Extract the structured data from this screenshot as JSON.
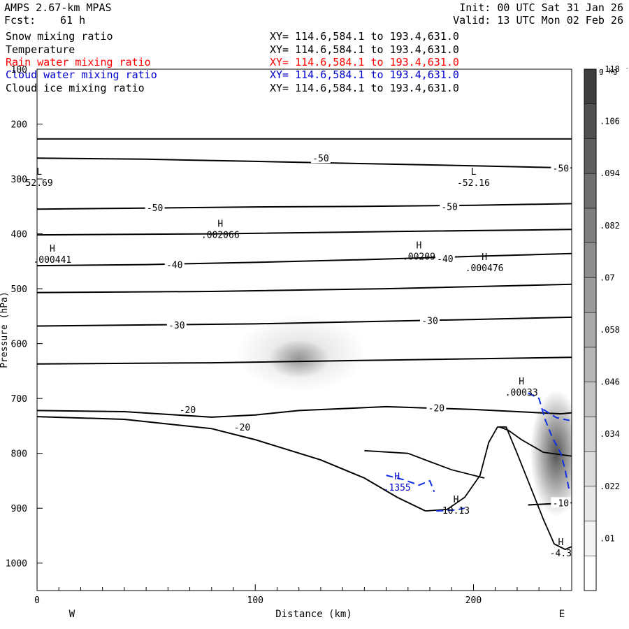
{
  "header": {
    "model": "AMPS 2.67-km MPAS",
    "fcst_label": "Fcst:",
    "fcst_value": "61 h",
    "init": "Init: 00 UTC Sat 31 Jan 26",
    "valid": "Valid: 13 UTC Mon 02 Feb 26"
  },
  "fields": [
    {
      "name": "Snow mixing ratio",
      "xy": "XY= 114.6,584.1 to 193.4,631.0",
      "color": "#000000"
    },
    {
      "name": "Temperature",
      "xy": "XY= 114.6,584.1 to 193.4,631.0",
      "color": "#000000"
    },
    {
      "name": "Rain water mixing ratio",
      "xy": "XY= 114.6,584.1 to 193.4,631.0",
      "color": "#ff0000"
    },
    {
      "name": "Cloud water mixing ratio",
      "xy": "XY= 114.6,584.1 to 193.4,631.0",
      "color": "#0000cc"
    },
    {
      "name": "Cloud ice mixing ratio",
      "xy": "XY= 114.6,584.1 to 193.4,631.0",
      "color": "#000000"
    }
  ],
  "chart_data": {
    "type": "heatmap",
    "xlabel": "Distance (km)",
    "ylabel": "Pressure (hPa)",
    "xlim": [
      0,
      245
    ],
    "ylim": [
      100,
      1050
    ],
    "y_scale": "linear",
    "x_ticks": [
      0,
      100,
      200
    ],
    "y_ticks": [
      100,
      200,
      300,
      400,
      500,
      600,
      700,
      800,
      900,
      1000
    ],
    "x_end_labels": {
      "left": "W",
      "right": "E"
    },
    "colorbar": {
      "units": "g kg",
      "units_exp": "-1",
      "labels": [
        ".01",
        ".022",
        ".034",
        ".046",
        ".058",
        ".07",
        ".082",
        ".094",
        ".106",
        ".118"
      ],
      "shades": [
        "#ffffff",
        "#f4f4f4",
        "#e8e8e8",
        "#dcdcdc",
        "#d0d0d0",
        "#c3c3c3",
        "#b6b6b6",
        "#a9a9a9",
        "#9b9b9b",
        "#8d8d8d",
        "#7f7f7f",
        "#6f6f6f",
        "#5f5f5f",
        "#4f4f4f",
        "#3f3f3f"
      ]
    },
    "temperature_isotherms": [
      {
        "label": "-50",
        "points": [
          [
            0,
            262
          ],
          [
            50,
            264
          ],
          [
            100,
            268
          ],
          [
            150,
            272
          ],
          [
            200,
            276
          ],
          [
            245,
            280
          ]
        ]
      },
      {
        "label": "-50",
        "points": [
          [
            0,
            355
          ],
          [
            50,
            353
          ],
          [
            100,
            351
          ],
          [
            150,
            350
          ],
          [
            200,
            348
          ],
          [
            245,
            345
          ]
        ]
      },
      {
        "label": "-40",
        "points": [
          [
            0,
            458
          ],
          [
            50,
            456
          ],
          [
            100,
            452
          ],
          [
            150,
            447
          ],
          [
            200,
            441
          ],
          [
            245,
            436
          ]
        ]
      },
      {
        "label": "-30",
        "points": [
          [
            0,
            568
          ],
          [
            50,
            566
          ],
          [
            100,
            564
          ],
          [
            150,
            560
          ],
          [
            200,
            556
          ],
          [
            245,
            552
          ]
        ]
      },
      {
        "label": "-20",
        "points": [
          [
            0,
            722
          ],
          [
            40,
            724
          ],
          [
            80,
            734
          ],
          [
            100,
            730
          ],
          [
            120,
            722
          ],
          [
            160,
            715
          ],
          [
            200,
            720
          ],
          [
            240,
            728
          ],
          [
            245,
            726
          ]
        ]
      },
      {
        "label": "-20",
        "points": [
          [
            0,
            733
          ],
          [
            40,
            738
          ],
          [
            80,
            755
          ],
          [
            100,
            775
          ],
          [
            130,
            812
          ],
          [
            150,
            845
          ],
          [
            165,
            880
          ],
          [
            178,
            905
          ]
        ]
      },
      {
        "label": "-10",
        "points": [
          [
            225,
            894
          ],
          [
            245,
            890
          ]
        ]
      }
    ],
    "upper_lines": [
      {
        "points": [
          [
            0,
            227
          ],
          [
            245,
            227
          ]
        ]
      },
      {
        "points": [
          [
            0,
            402
          ],
          [
            80,
            400
          ],
          [
            160,
            396
          ],
          [
            245,
            392
          ]
        ]
      },
      {
        "points": [
          [
            0,
            507
          ],
          [
            80,
            505
          ],
          [
            160,
            500
          ],
          [
            245,
            492
          ]
        ]
      },
      {
        "points": [
          [
            0,
            637
          ],
          [
            80,
            635
          ],
          [
            160,
            630
          ],
          [
            245,
            625
          ]
        ]
      }
    ],
    "terrain_contours": [
      {
        "points": [
          [
            150,
            795
          ],
          [
            170,
            800
          ],
          [
            180,
            815
          ],
          [
            190,
            830
          ],
          [
            205,
            845
          ]
        ]
      },
      {
        "points": [
          [
            178,
            905
          ],
          [
            188,
            902
          ],
          [
            196,
            880
          ],
          [
            203,
            840
          ],
          [
            207,
            780
          ],
          [
            211,
            752
          ],
          [
            215,
            752
          ],
          [
            220,
            800
          ],
          [
            226,
            860
          ],
          [
            232,
            920
          ],
          [
            237,
            965
          ],
          [
            242,
            975
          ],
          [
            245,
            970
          ]
        ]
      },
      {
        "points": [
          [
            212,
            752
          ],
          [
            216,
            758
          ],
          [
            222,
            775
          ],
          [
            232,
            798
          ],
          [
            245,
            805
          ]
        ]
      }
    ],
    "extrema": [
      {
        "type": "L",
        "value": "52.69",
        "x": 1,
        "p": 300
      },
      {
        "type": "L",
        "value": "-52.16",
        "x": 200,
        "p": 300
      },
      {
        "type": "H",
        "value": ".002066",
        "x": 84,
        "p": 395
      },
      {
        "type": "H",
        "value": ".000441",
        "x": 7,
        "p": 440
      },
      {
        "type": "H",
        "value": ".00209",
        "x": 175,
        "p": 434
      },
      {
        "type": "H",
        "value": ".000476",
        "x": 205,
        "p": 455
      },
      {
        "type": "H",
        "value": ".00033",
        "x": 222,
        "p": 682
      },
      {
        "type": "H",
        "value": ".1355",
        "x": 165,
        "p": 855
      },
      {
        "type": "H",
        "value": "10.13",
        "x": 192,
        "p": 897
      },
      {
        "type": "H",
        "value": "-4.3",
        "x": 240,
        "p": 975
      }
    ],
    "cloud_water_dashes": [
      {
        "points": [
          [
            160,
            840
          ],
          [
            168,
            848
          ],
          [
            175,
            858
          ],
          [
            180,
            850
          ],
          [
            182,
            870
          ]
        ]
      },
      {
        "points": [
          [
            225,
            690
          ],
          [
            230,
            700
          ],
          [
            233,
            740
          ],
          [
            236,
            770
          ],
          [
            240,
            800
          ],
          [
            242,
            830
          ],
          [
            244,
            870
          ]
        ]
      },
      {
        "points": [
          [
            232,
            720
          ],
          [
            238,
            735
          ],
          [
            244,
            740
          ]
        ]
      },
      {
        "points": [
          [
            183,
            905
          ],
          [
            192,
            903
          ],
          [
            196,
            900
          ]
        ]
      }
    ],
    "isotherm_labels": [
      {
        "text": "-50",
        "x": 130,
        "p": 262
      },
      {
        "text": "-50",
        "x": 240,
        "p": 280
      },
      {
        "text": "-50",
        "x": 54,
        "p": 352
      },
      {
        "text": "-50",
        "x": 189,
        "p": 350
      },
      {
        "text": "-40",
        "x": 63,
        "p": 456
      },
      {
        "text": "-40",
        "x": 187,
        "p": 445
      },
      {
        "text": "-30",
        "x": 64,
        "p": 566
      },
      {
        "text": "-30",
        "x": 180,
        "p": 558
      },
      {
        "text": "-20",
        "x": 69,
        "p": 720
      },
      {
        "text": "-20",
        "x": 183,
        "p": 717
      },
      {
        "text": "-20",
        "x": 94,
        "p": 752
      },
      {
        "text": "-10",
        "x": 240,
        "p": 890
      }
    ],
    "shaded_regions": [
      {
        "cx": 121,
        "cp": 618,
        "rx": 30,
        "rp": 70,
        "level": 0.02
      },
      {
        "cx": 120,
        "cp": 628,
        "rx": 14,
        "rp": 35,
        "level": 0.05
      },
      {
        "cx": 238,
        "cp": 800,
        "rx": 12,
        "rp": 115,
        "level": 0.1
      }
    ]
  }
}
